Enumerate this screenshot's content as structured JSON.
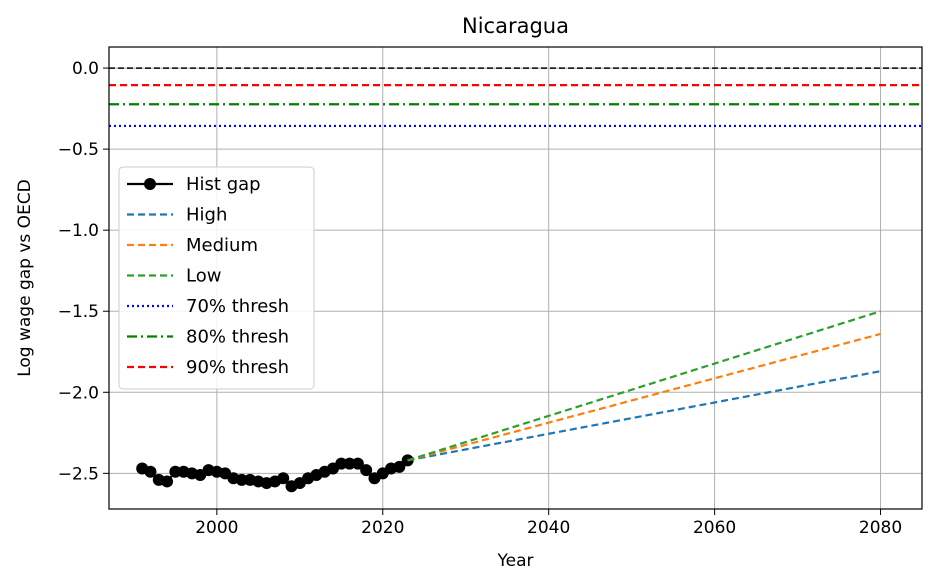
{
  "chart_data": {
    "type": "line",
    "title": "Nicaragua",
    "xlabel": "Year",
    "ylabel": "Log wage gap vs OECD",
    "xlim": [
      1987,
      2085
    ],
    "ylim": [
      -2.72,
      0.13
    ],
    "xticks": [
      2000,
      2020,
      2040,
      2060,
      2080
    ],
    "xtick_labels": [
      "2000",
      "2020",
      "2040",
      "2060",
      "2080"
    ],
    "yticks": [
      0.0,
      -0.5,
      -1.0,
      -1.5,
      -2.0,
      -2.5
    ],
    "ytick_labels": [
      "0.0",
      "−0.5",
      "−1.0",
      "−1.5",
      "−2.0",
      "−2.5"
    ],
    "grid": true,
    "legend_position": "center-left",
    "series": [
      {
        "name": "Hist gap",
        "style": "solid-marker",
        "color": "#000000",
        "x": [
          1991,
          1992,
          1993,
          1994,
          1995,
          1996,
          1997,
          1998,
          1999,
          2000,
          2001,
          2002,
          2003,
          2004,
          2005,
          2006,
          2007,
          2008,
          2009,
          2010,
          2011,
          2012,
          2013,
          2014,
          2015,
          2016,
          2017,
          2018,
          2019,
          2020,
          2021,
          2022,
          2023
        ],
        "y": [
          -2.47,
          -2.49,
          -2.54,
          -2.55,
          -2.49,
          -2.49,
          -2.5,
          -2.51,
          -2.48,
          -2.49,
          -2.5,
          -2.53,
          -2.54,
          -2.54,
          -2.55,
          -2.56,
          -2.55,
          -2.53,
          -2.58,
          -2.56,
          -2.53,
          -2.51,
          -2.49,
          -2.47,
          -2.44,
          -2.44,
          -2.44,
          -2.48,
          -2.53,
          -2.5,
          -2.47,
          -2.46,
          -2.42
        ]
      },
      {
        "name": "High",
        "style": "dashed",
        "color": "#1f77b4",
        "x": [
          2023,
          2080
        ],
        "y": [
          -2.42,
          -1.87
        ]
      },
      {
        "name": "Medium",
        "style": "dashed",
        "color": "#ff7f0e",
        "x": [
          2023,
          2080
        ],
        "y": [
          -2.42,
          -1.64
        ]
      },
      {
        "name": "Low",
        "style": "dashed",
        "color": "#2ca02c",
        "x": [
          2023,
          2080
        ],
        "y": [
          -2.42,
          -1.5
        ]
      },
      {
        "name": "70% thresh",
        "style": "dotted",
        "color": "#0000ff",
        "hline": -0.357
      },
      {
        "name": "80% thresh",
        "style": "dashdot",
        "color": "#008000",
        "hline": -0.223
      },
      {
        "name": "90% thresh",
        "style": "dashed",
        "color": "#ff0000",
        "hline": -0.105
      }
    ],
    "reference_line": {
      "y": 0.0,
      "color": "#000000",
      "style": "dashed"
    }
  }
}
